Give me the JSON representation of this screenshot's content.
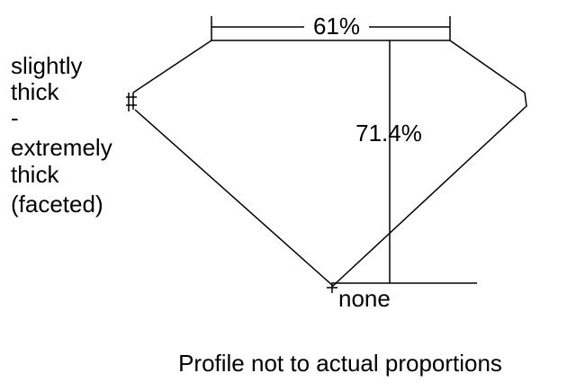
{
  "title": "Profile not to actual proportions",
  "table_percent": "61%",
  "depth_percent": "71.4%",
  "girdle_label": [
    "slightly",
    "thick",
    "-",
    "extremely",
    "thick",
    "(faceted)"
  ],
  "culet_label": "none"
}
